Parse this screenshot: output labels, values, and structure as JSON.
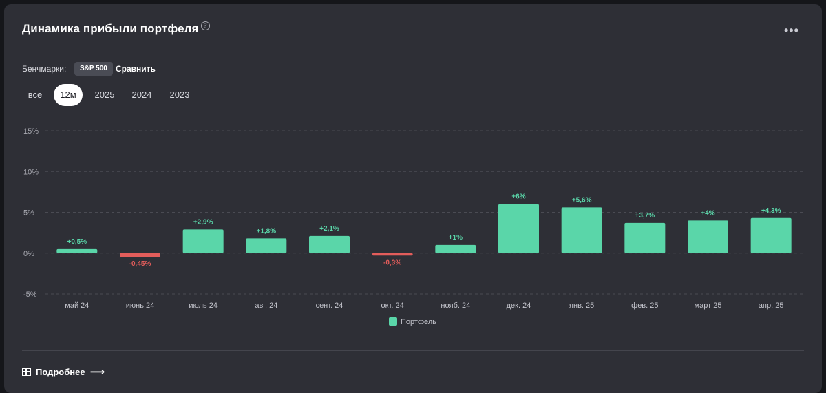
{
  "header": {
    "title": "Динамика прибыли портфеля",
    "help_icon": "?",
    "more_icon": "•••"
  },
  "benchmarks": {
    "label": "Бенчмарки:",
    "chip": "S&P 500",
    "compare": "Сравнить"
  },
  "periods": [
    "все",
    "12м",
    "2025",
    "2024",
    "2023"
  ],
  "active_period": "12м",
  "colors": {
    "positive": "#5ad6a9",
    "negative": "#e35d5b",
    "grid": "#4a4b53"
  },
  "chart_data": {
    "type": "bar",
    "title": "",
    "xlabel": "",
    "ylabel": "",
    "ylim": [
      -5,
      15
    ],
    "yticks": [
      15,
      10,
      5,
      0,
      -5
    ],
    "ytick_labels": [
      "15%",
      "10%",
      "5%",
      "0%",
      "-5%"
    ],
    "categories": [
      "май 24",
      "июнь 24",
      "июль 24",
      "авг. 24",
      "сент. 24",
      "окт. 24",
      "нояб. 24",
      "дек. 24",
      "янв. 25",
      "фев. 25",
      "март 25",
      "апр. 25"
    ],
    "series": [
      {
        "name": "Портфель",
        "values": [
          0.5,
          -0.45,
          2.9,
          1.8,
          2.1,
          -0.3,
          1,
          6,
          5.6,
          3.7,
          4,
          4.3
        ],
        "labels": [
          "+0,5%",
          "-0,45%",
          "+2,9%",
          "+1,8%",
          "+2,1%",
          "-0,3%",
          "+1%",
          "+6%",
          "+5,6%",
          "+3,7%",
          "+4%",
          "+4,3%"
        ]
      }
    ],
    "legend": [
      "Портфель"
    ],
    "legend_position": "bottom"
  },
  "footer": {
    "link": "Подробнее",
    "arrow": "⟶"
  }
}
